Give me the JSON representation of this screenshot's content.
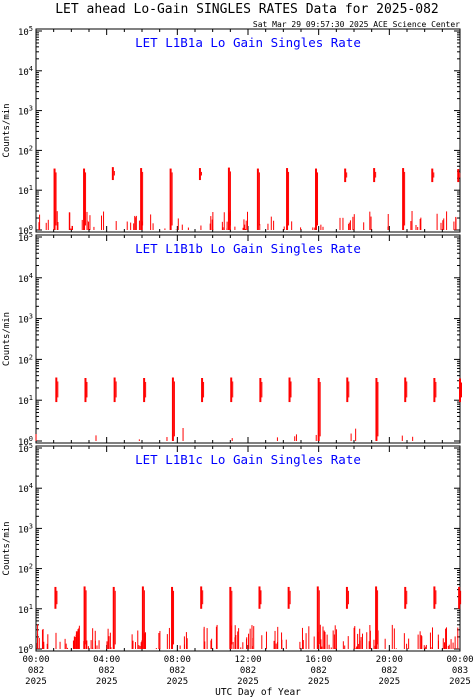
{
  "header": {
    "title": "LET ahead Lo-Gain SINGLES RATES Data for 2025-082",
    "timestamp": "Sat Mar 29 09:57:30 2025 ACE Science Center"
  },
  "colors": {
    "data": "#ff0000",
    "panel_title": "#0000ff",
    "axis": "#000000"
  },
  "chart_data": [
    {
      "type": "scatter",
      "title": "LET L1B1a Lo Gain Singles Rate",
      "ylabel": "Counts/min",
      "yscale": "log",
      "ylim": [
        1,
        100000
      ],
      "xlim": [
        0,
        24
      ],
      "y_tick_labels": [
        "10^0",
        "10^1",
        "10^2",
        "10^3",
        "10^4",
        "10^5"
      ],
      "bursts": [
        {
          "x": 1.05,
          "low": 1.0,
          "high": 35
        },
        {
          "x": 2.72,
          "low": 1.0,
          "high": 35
        },
        {
          "x": 4.35,
          "low": 18,
          "high": 38
        },
        {
          "x": 5.95,
          "low": 1.0,
          "high": 36
        },
        {
          "x": 7.62,
          "low": 1.0,
          "high": 35
        },
        {
          "x": 9.28,
          "low": 18,
          "high": 36
        },
        {
          "x": 10.92,
          "low": 1.0,
          "high": 37
        },
        {
          "x": 12.56,
          "low": 1.0,
          "high": 35
        },
        {
          "x": 14.21,
          "low": 1.0,
          "high": 36
        },
        {
          "x": 15.85,
          "low": 1.0,
          "high": 35
        },
        {
          "x": 17.5,
          "low": 16,
          "high": 35
        },
        {
          "x": 19.14,
          "low": 16,
          "high": 36
        },
        {
          "x": 20.78,
          "low": 1.0,
          "high": 36
        },
        {
          "x": 22.43,
          "low": 16,
          "high": 35
        },
        {
          "x": 23.9,
          "low": 16,
          "high": 34
        }
      ],
      "background": {
        "points": 95,
        "low": 1.0,
        "high": 3.0
      }
    },
    {
      "type": "scatter",
      "title": "LET L1B1b Lo Gain Singles Rate",
      "ylabel": "Counts/min",
      "yscale": "log",
      "ylim": [
        1,
        100000
      ],
      "xlim": [
        0,
        24
      ],
      "y_tick_labels": [
        "10^0",
        "10^1",
        "10^2",
        "10^3",
        "10^4",
        "10^5"
      ],
      "bursts": [
        {
          "x": 1.15,
          "low": 9,
          "high": 36
        },
        {
          "x": 2.8,
          "low": 9,
          "high": 35
        },
        {
          "x": 4.45,
          "low": 9,
          "high": 36
        },
        {
          "x": 6.12,
          "low": 9,
          "high": 35
        },
        {
          "x": 7.75,
          "low": 1.0,
          "high": 36
        },
        {
          "x": 9.4,
          "low": 9,
          "high": 35
        },
        {
          "x": 11.05,
          "low": 9,
          "high": 36
        },
        {
          "x": 12.7,
          "low": 9,
          "high": 35
        },
        {
          "x": 14.35,
          "low": 9,
          "high": 36
        },
        {
          "x": 16.0,
          "low": 1.0,
          "high": 35
        },
        {
          "x": 17.62,
          "low": 9,
          "high": 36
        },
        {
          "x": 19.27,
          "low": 1.0,
          "high": 35
        },
        {
          "x": 20.9,
          "low": 9,
          "high": 36
        },
        {
          "x": 22.55,
          "low": 9,
          "high": 35
        },
        {
          "x": 24.0,
          "low": 9,
          "high": 34
        }
      ],
      "background": {
        "points": 14,
        "low": 1.0,
        "high": 2.0
      }
    },
    {
      "type": "scatter",
      "title": "LET L1B1c Lo Gain Singles Rate",
      "ylabel": "Counts/min",
      "yscale": "log",
      "ylim": [
        1,
        100000
      ],
      "xlim": [
        0,
        24
      ],
      "y_tick_labels": [
        "10^0",
        "10^1",
        "10^2",
        "10^3",
        "10^4",
        "10^5"
      ],
      "x_tick_labels": [
        {
          "time": "00:00",
          "day": "082",
          "year": "2025"
        },
        {
          "time": "04:00",
          "day": "082",
          "year": "2025"
        },
        {
          "time": "08:00",
          "day": "082",
          "year": "2025"
        },
        {
          "time": "12:00",
          "day": "082",
          "year": "2025"
        },
        {
          "time": "16:00",
          "day": "082",
          "year": "2025"
        },
        {
          "time": "20:00",
          "day": "082",
          "year": "2025"
        },
        {
          "time": "00:00",
          "day": "083",
          "year": "2025"
        }
      ],
      "xlabel": "UTC Day of Year",
      "bursts": [
        {
          "x": 1.1,
          "low": 10,
          "high": 35
        },
        {
          "x": 2.75,
          "low": 1.0,
          "high": 36
        },
        {
          "x": 4.4,
          "low": 1.0,
          "high": 35
        },
        {
          "x": 6.05,
          "low": 1.0,
          "high": 36
        },
        {
          "x": 7.7,
          "low": 1.0,
          "high": 35
        },
        {
          "x": 9.35,
          "low": 10,
          "high": 36
        },
        {
          "x": 11.0,
          "low": 1.0,
          "high": 35
        },
        {
          "x": 12.65,
          "low": 10,
          "high": 36
        },
        {
          "x": 14.3,
          "low": 10,
          "high": 35
        },
        {
          "x": 15.95,
          "low": 1.0,
          "high": 36
        },
        {
          "x": 17.6,
          "low": 10,
          "high": 35
        },
        {
          "x": 19.25,
          "low": 1.0,
          "high": 36
        },
        {
          "x": 20.9,
          "low": 10,
          "high": 35
        },
        {
          "x": 22.55,
          "low": 10,
          "high": 36
        },
        {
          "x": 23.95,
          "low": 10,
          "high": 35
        }
      ],
      "background": {
        "points": 180,
        "low": 1.0,
        "high": 4.0
      }
    }
  ]
}
